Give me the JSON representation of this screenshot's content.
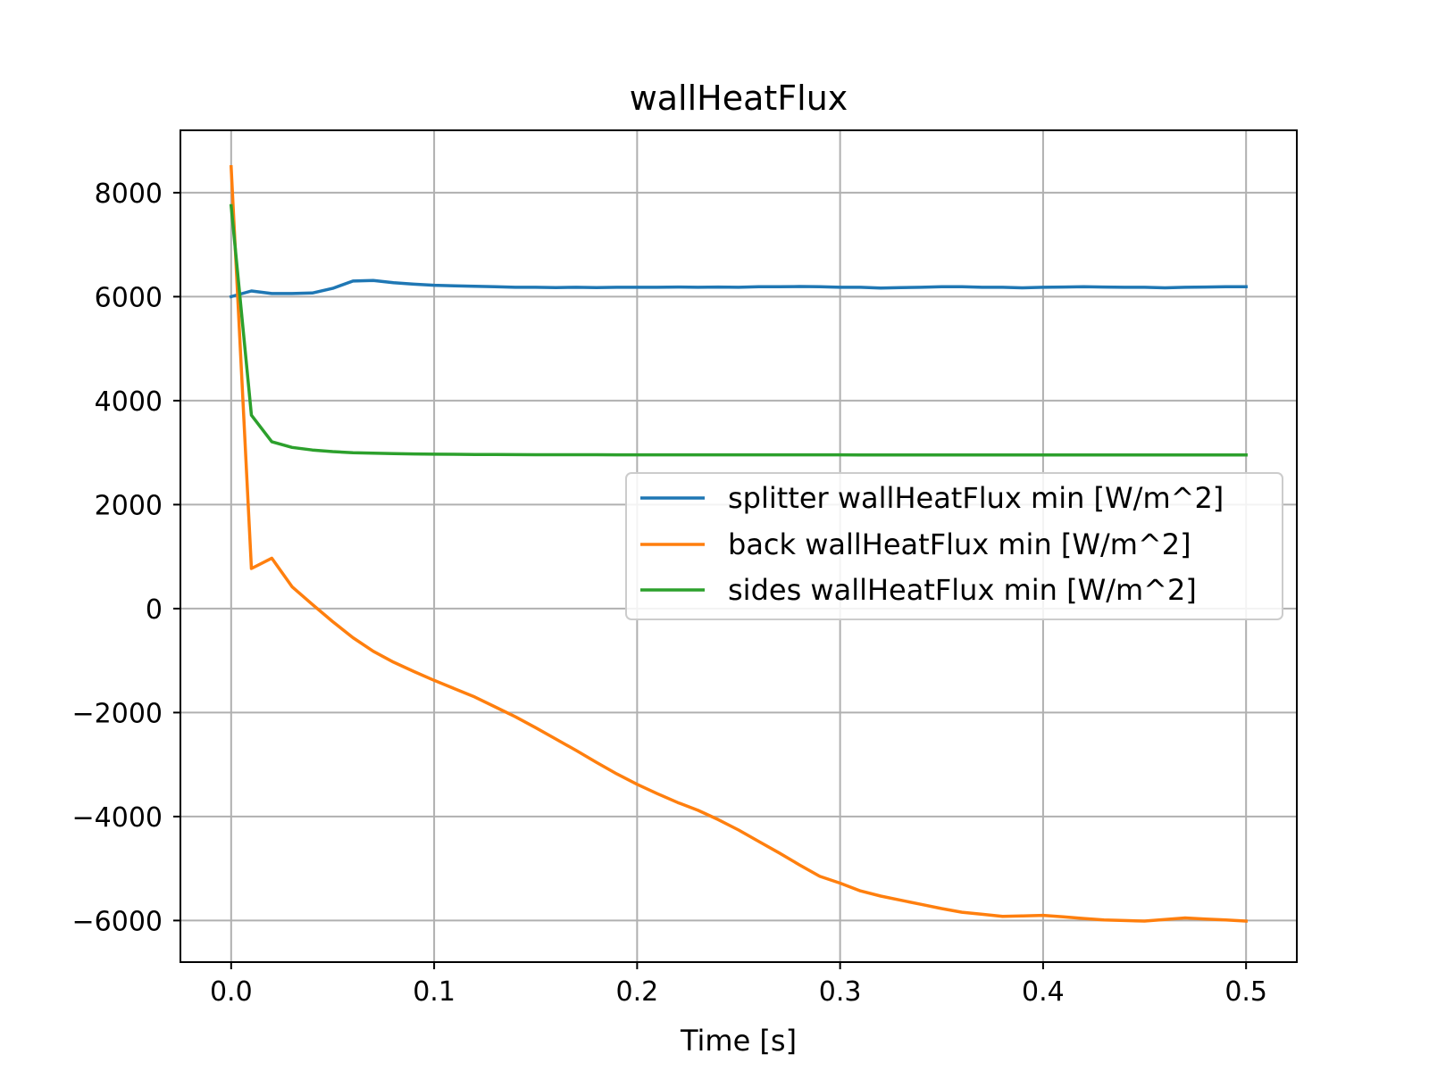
{
  "chart_data": {
    "type": "line",
    "title": "wallHeatFlux",
    "xlabel": "Time [s]",
    "ylabel": "",
    "xlim": [
      -0.025,
      0.525
    ],
    "ylim": [
      -6800,
      9200
    ],
    "x_ticks": [
      0.0,
      0.1,
      0.2,
      0.3,
      0.4,
      0.5
    ],
    "x_tick_labels": [
      "0.0",
      "0.1",
      "0.2",
      "0.3",
      "0.4",
      "0.5"
    ],
    "y_ticks": [
      -6000,
      -4000,
      -2000,
      0,
      2000,
      4000,
      6000,
      8000
    ],
    "y_tick_labels": [
      "−6000",
      "−4000",
      "−2000",
      "0",
      "2000",
      "4000",
      "6000",
      "8000"
    ],
    "grid": true,
    "legend_position": "center-right",
    "x": [
      0.0,
      0.01,
      0.02,
      0.03,
      0.04,
      0.05,
      0.06,
      0.07,
      0.08,
      0.09,
      0.1,
      0.11,
      0.12,
      0.13,
      0.14,
      0.15,
      0.16,
      0.17,
      0.18,
      0.19,
      0.2,
      0.21,
      0.22,
      0.23,
      0.24,
      0.25,
      0.26,
      0.27,
      0.28,
      0.29,
      0.3,
      0.31,
      0.32,
      0.33,
      0.34,
      0.35,
      0.36,
      0.37,
      0.38,
      0.39,
      0.4,
      0.41,
      0.42,
      0.43,
      0.44,
      0.45,
      0.46,
      0.47,
      0.48,
      0.49,
      0.5
    ],
    "series": [
      {
        "name": "splitter wallHeatFlux min [W/m^2]",
        "color": "#1f77b4",
        "values": [
          6000,
          6110,
          6060,
          6060,
          6070,
          6160,
          6300,
          6310,
          6270,
          6240,
          6220,
          6210,
          6200,
          6190,
          6180,
          6180,
          6175,
          6180,
          6175,
          6180,
          6180,
          6180,
          6185,
          6180,
          6185,
          6180,
          6190,
          6190,
          6195,
          6190,
          6180,
          6180,
          6165,
          6175,
          6180,
          6190,
          6190,
          6180,
          6180,
          6170,
          6180,
          6185,
          6190,
          6185,
          6180,
          6180,
          6170,
          6180,
          6185,
          6190,
          6190
        ]
      },
      {
        "name": "back wallHeatFlux min [W/m^2]",
        "color": "#ff7f0e",
        "values": [
          8500,
          770,
          970,
          420,
          80,
          -250,
          -560,
          -820,
          -1030,
          -1210,
          -1380,
          -1540,
          -1700,
          -1890,
          -2080,
          -2290,
          -2510,
          -2730,
          -2960,
          -3180,
          -3380,
          -3560,
          -3730,
          -3880,
          -4060,
          -4260,
          -4480,
          -4700,
          -4930,
          -5150,
          -5280,
          -5430,
          -5530,
          -5610,
          -5690,
          -5770,
          -5840,
          -5880,
          -5920,
          -5910,
          -5900,
          -5930,
          -5960,
          -5990,
          -6000,
          -6010,
          -5980,
          -5950,
          -5970,
          -5990,
          -6010
        ]
      },
      {
        "name": "sides wallHeatFlux min [W/m^2]",
        "color": "#2ca02c",
        "values": [
          7750,
          3720,
          3210,
          3100,
          3050,
          3020,
          3000,
          2990,
          2980,
          2975,
          2970,
          2968,
          2965,
          2963,
          2962,
          2960,
          2960,
          2960,
          2960,
          2958,
          2958,
          2958,
          2958,
          2958,
          2958,
          2958,
          2958,
          2958,
          2958,
          2958,
          2958,
          2957,
          2957,
          2957,
          2957,
          2957,
          2957,
          2957,
          2957,
          2957,
          2957,
          2957,
          2957,
          2957,
          2957,
          2957,
          2957,
          2957,
          2957,
          2957,
          2957
        ]
      }
    ]
  }
}
